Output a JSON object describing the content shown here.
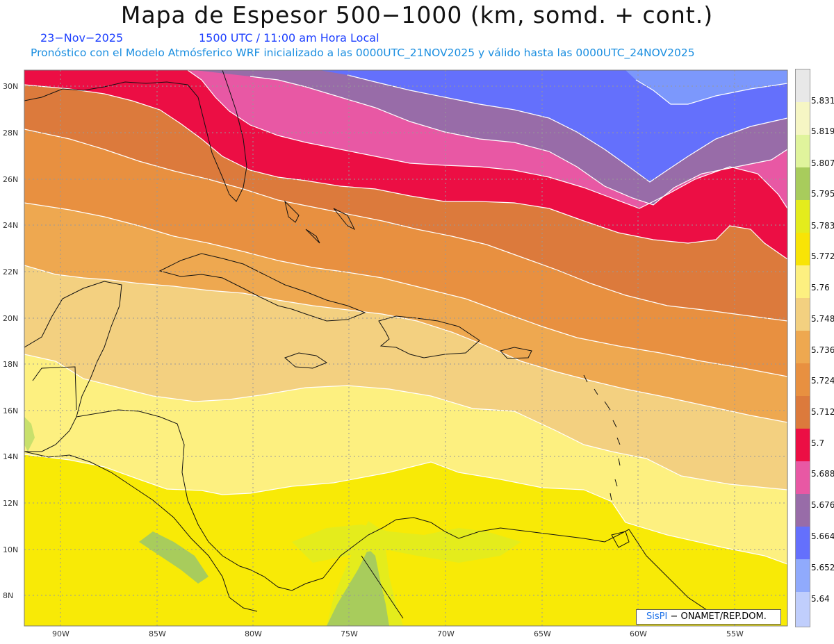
{
  "header": {
    "title": "Mapa de Espesor 500−1000 (km, somd. + cont.)",
    "date": "23−Nov−2025",
    "time": "1500 UTC / 11:00 am Hora Local",
    "description": "Pronóstico con el Modelo Atmósferico WRF inicializado a las 0000UTC_21NOV2025 y válido hasta las  0000UTC_24NOV2025"
  },
  "map": {
    "region": "Caribe / Golfo de México",
    "lon_range": [
      -92,
      -53
    ],
    "lat_range": [
      7,
      31
    ],
    "lat_ticks": [
      "30N",
      "28N",
      "26N",
      "24N",
      "22N",
      "20N",
      "18N",
      "16N",
      "14N",
      "12N",
      "10N",
      "8N"
    ],
    "lon_ticks": [
      "90W",
      "85W",
      "80W",
      "75W",
      "70W",
      "65W",
      "60W",
      "55W"
    ],
    "shading_colors": [
      "#f6eea0",
      "#f3f8b4",
      "#c8e06c",
      "#a8cc5c",
      "#e4ec1c",
      "#f8ea06",
      "#fdf080",
      "#f3d080",
      "#eea850",
      "#e89040",
      "#dc7a3c",
      "#ec0e44",
      "#e858a4",
      "#986ca8",
      "#6470fc",
      "#7c98fc"
    ]
  },
  "legend": {
    "labels": [
      "5.831",
      "5.819",
      "5.807",
      "5.795",
      "5.783",
      "5.772",
      "5.76",
      "5.748",
      "5.736",
      "5.724",
      "5.712",
      "5.7",
      "5.688",
      "5.676",
      "5.664",
      "5.652",
      "5.64"
    ],
    "colors": [
      "#e8e8e8",
      "#f6f6c4",
      "#e0f49c",
      "#a8cc5c",
      "#e4ec1c",
      "#f8e406",
      "#fdf080",
      "#f3d080",
      "#eea850",
      "#e89040",
      "#dc7a3c",
      "#ec0e44",
      "#e858a4",
      "#986ca8",
      "#6470fc",
      "#90aafc",
      "#c0cefc"
    ]
  },
  "credit": {
    "brand": "SisPI",
    "text": " − ONAMET/REP.DOM."
  }
}
